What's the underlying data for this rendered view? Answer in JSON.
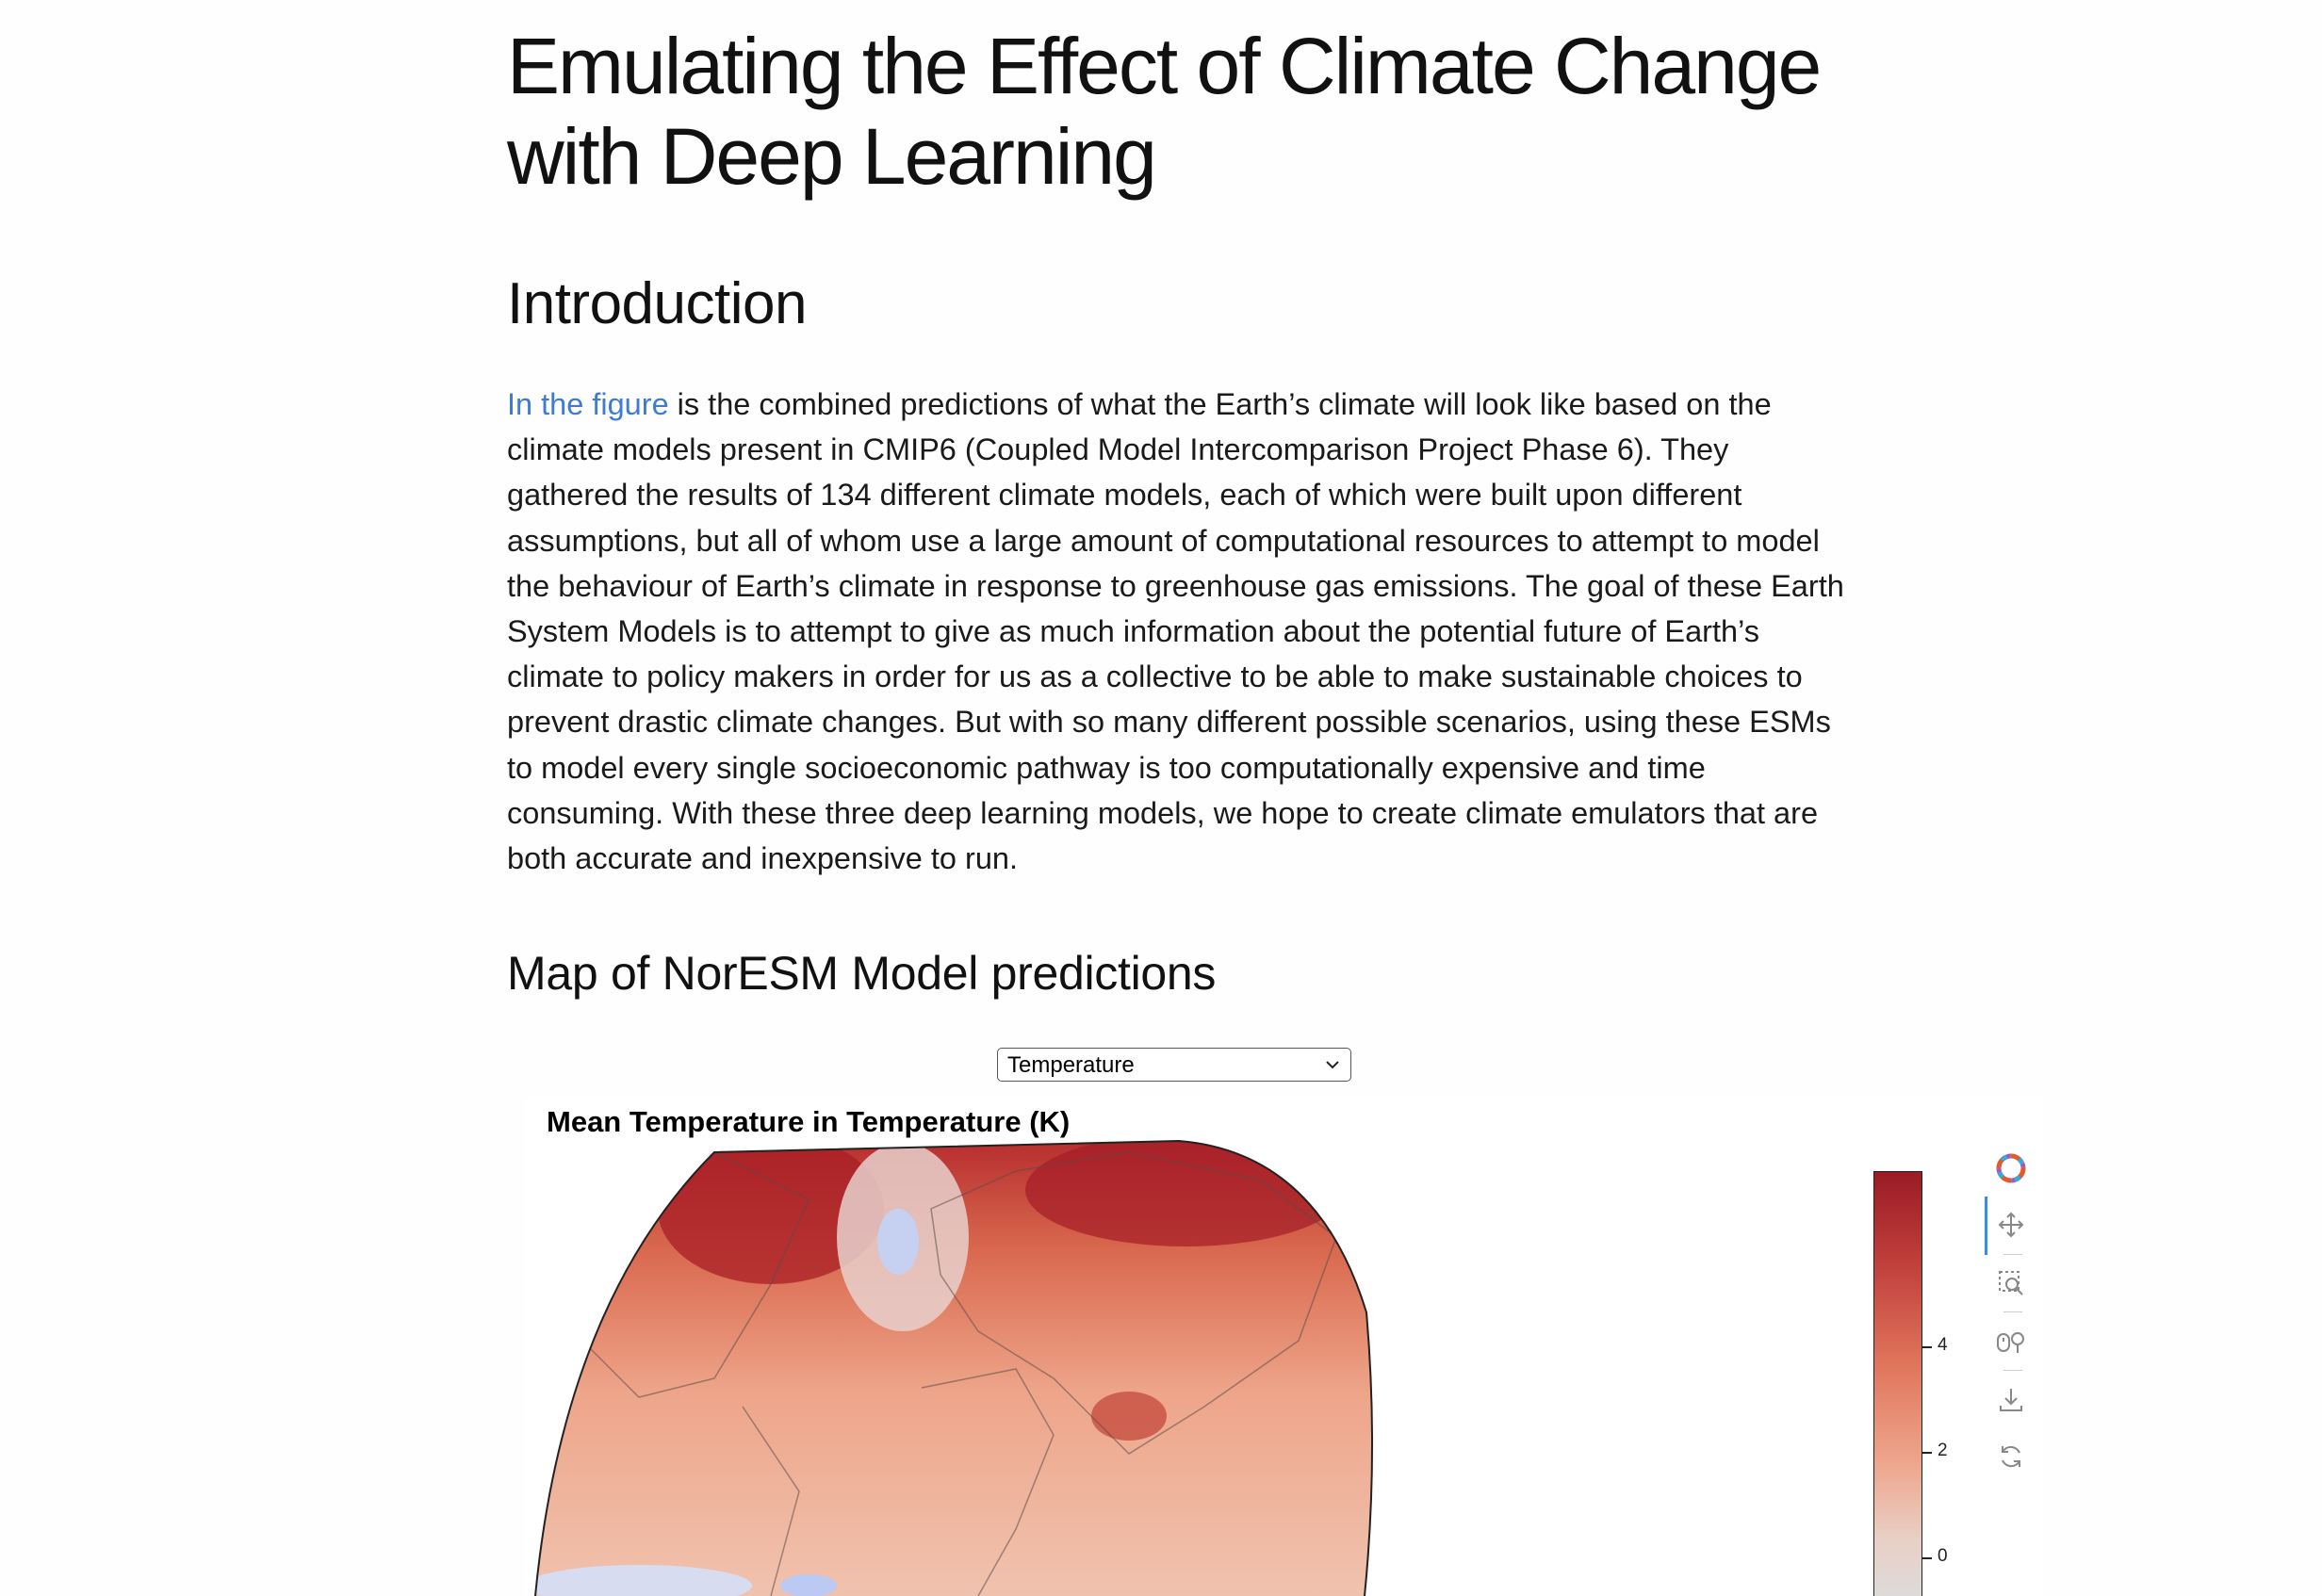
{
  "page": {
    "title": "Emulating the Effect of Climate Change with Deep Learning",
    "intro_heading": "Introduction",
    "intro_link": "In the figure",
    "intro_text": " is the combined predictions of what the Earth’s climate will look like based on the climate models present in CMIP6 (Coupled Model Intercomparison Project Phase 6). They gathered the results of 134 different climate models, each of which were built upon different assumptions, but all of whom use a large amount of computational resources to attempt to model the behaviour of Earth’s climate in response to greenhouse gas emissions. The goal of these Earth System Models is to attempt to give as much information about the potential future of Earth’s climate to policy makers in order for us as a collective to be able to make sustainable choices to prevent drastic climate changes. But with so many different possible scenarios, using these ESMs to model every single socioeconomic pathway is too computationally expensive and time consuming. With these three deep learning models, we hope to create climate emulators that are both accurate and inexpensive to run.",
    "map_heading": "Map of NorESM Model predictions"
  },
  "variable_select": {
    "value": "Temperature"
  },
  "plot": {
    "title": "Mean Temperature in Temperature (K)",
    "colorbar_ticks": [
      "4",
      "2",
      "0"
    ],
    "colorbar_tick_values": [
      4,
      2,
      0
    ],
    "colorbar_max": 5,
    "colors": {
      "high": "#9a1b24",
      "mid": "#e0765c",
      "low": "#dcdcdc",
      "cool": "#b9c9ee"
    }
  },
  "toolbar": {
    "tools": [
      {
        "icon": "bokeh-logo-icon"
      },
      {
        "icon": "pan-icon"
      },
      {
        "icon": "box-zoom-icon"
      },
      {
        "icon": "wheel-zoom-icon"
      },
      {
        "icon": "save-icon"
      },
      {
        "icon": "reset-icon"
      }
    ]
  }
}
